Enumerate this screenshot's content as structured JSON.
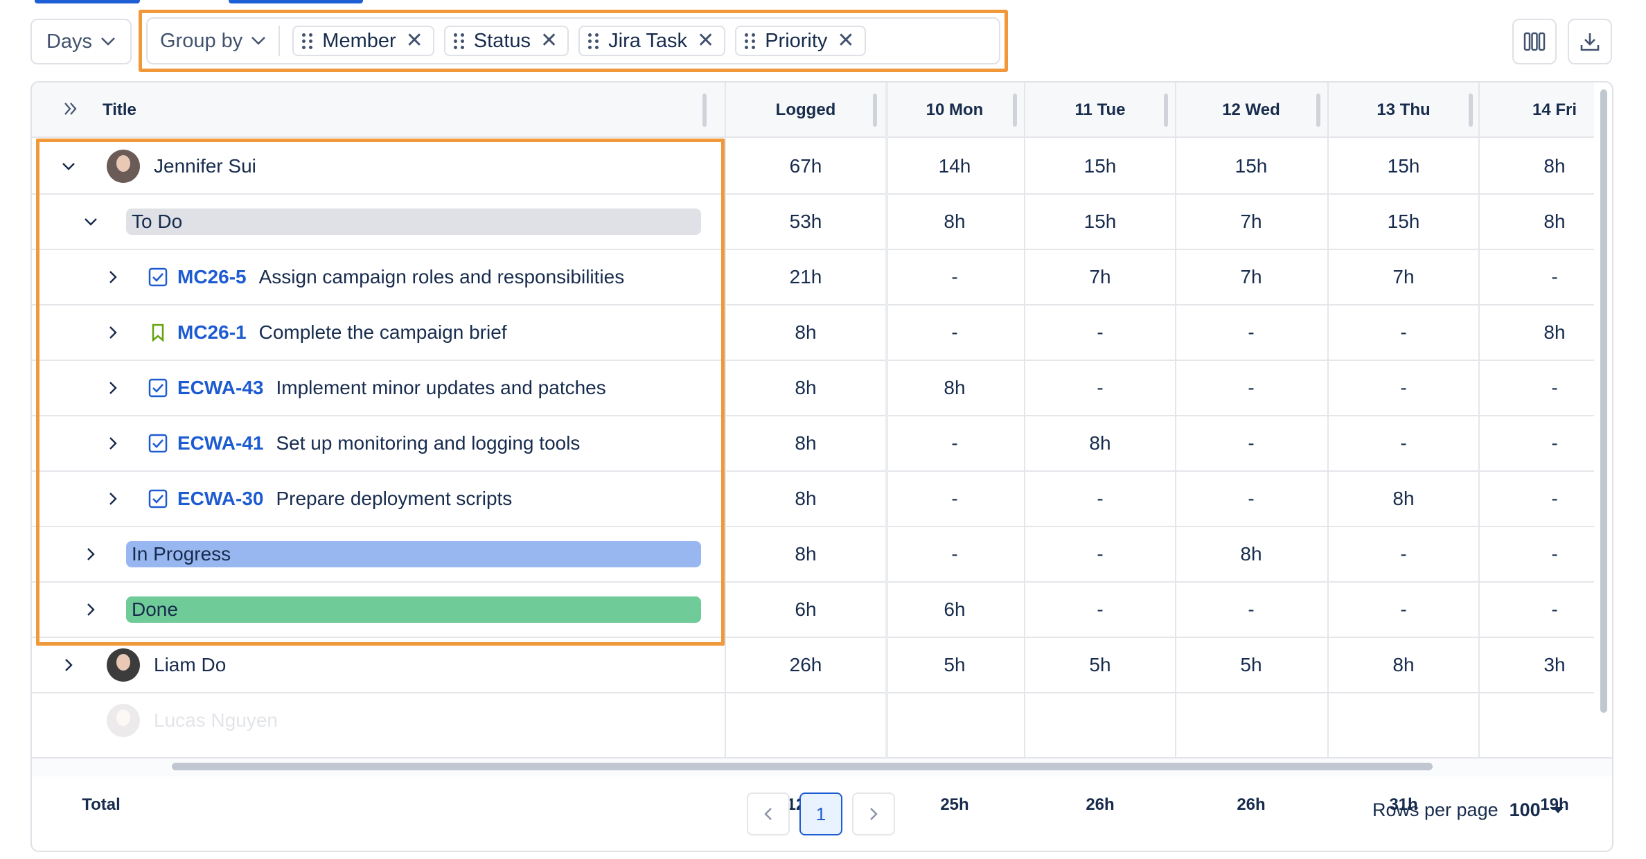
{
  "toolbar": {
    "days_label": "Days",
    "group_by_label": "Group by",
    "chips": [
      {
        "label": "Member"
      },
      {
        "label": "Status"
      },
      {
        "label": "Jira Task"
      },
      {
        "label": "Priority"
      }
    ]
  },
  "table": {
    "columns": {
      "title": "Title",
      "logged": "Logged",
      "days": [
        "10 Mon",
        "11 Tue",
        "12 Wed",
        "13 Thu",
        "14 Fri"
      ]
    },
    "rows": [
      {
        "type": "member",
        "name": "Jennifer Sui",
        "expanded": true,
        "logged": "67h",
        "days": [
          "14h",
          "15h",
          "15h",
          "15h",
          "8h"
        ]
      },
      {
        "type": "status",
        "name": "To Do",
        "color": "#dfe1e6",
        "expanded": true,
        "logged": "53h",
        "days": [
          "8h",
          "15h",
          "7h",
          "15h",
          "8h"
        ]
      },
      {
        "type": "task",
        "key": "MC26-5",
        "title": "Assign campaign roles and responsibilities",
        "icon": "checkbox-icon",
        "logged": "21h",
        "days": [
          "-",
          "7h",
          "7h",
          "7h",
          "-"
        ]
      },
      {
        "type": "task",
        "key": "MC26-1",
        "title": "Complete the campaign brief",
        "icon": "bookmark-icon",
        "logged": "8h",
        "days": [
          "-",
          "-",
          "-",
          "-",
          "8h"
        ]
      },
      {
        "type": "task",
        "key": "ECWA-43",
        "title": "Implement minor updates and patches",
        "icon": "checkbox-icon",
        "logged": "8h",
        "days": [
          "8h",
          "-",
          "-",
          "-",
          "-"
        ]
      },
      {
        "type": "task",
        "key": "ECWA-41",
        "title": "Set up monitoring and logging tools",
        "icon": "checkbox-icon",
        "logged": "8h",
        "days": [
          "-",
          "8h",
          "-",
          "-",
          "-"
        ]
      },
      {
        "type": "task",
        "key": "ECWA-30",
        "title": "Prepare deployment scripts",
        "icon": "checkbox-icon",
        "logged": "8h",
        "days": [
          "-",
          "-",
          "-",
          "8h",
          "-"
        ]
      },
      {
        "type": "status",
        "name": "In Progress",
        "color": "#98b7f0",
        "expanded": false,
        "logged": "8h",
        "days": [
          "-",
          "-",
          "8h",
          "-",
          "-"
        ]
      },
      {
        "type": "status",
        "name": "Done",
        "color": "#6fcb97",
        "expanded": false,
        "logged": "6h",
        "days": [
          "6h",
          "-",
          "-",
          "-",
          "-"
        ]
      },
      {
        "type": "member",
        "name": "Liam Do",
        "expanded": false,
        "logged": "26h",
        "days": [
          "5h",
          "5h",
          "5h",
          "8h",
          "3h"
        ]
      }
    ],
    "partial_row": {
      "name": "Lucas Nguyen"
    },
    "total": {
      "label": "Total",
      "logged": "127h",
      "days": [
        "25h",
        "26h",
        "26h",
        "31h",
        "19h"
      ]
    }
  },
  "pagination": {
    "current_page": "1",
    "rows_per_page_label": "Rows per page",
    "rows_per_page_value": "100"
  },
  "colors": {
    "highlight": "#f0983a",
    "link": "#1d5bd1"
  }
}
